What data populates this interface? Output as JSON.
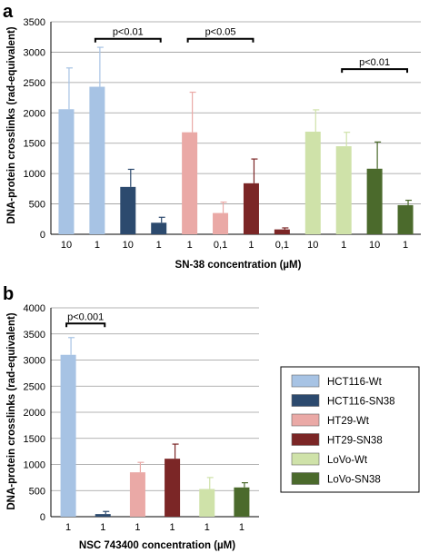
{
  "chart_data": [
    {
      "type": "bar",
      "panel_label": "a",
      "ylabel": "DNA-protein crosslinks (rad-equivalent)",
      "xlabel": "SN-38 concentration (µM)",
      "ylim": [
        0,
        3500
      ],
      "yticks": [
        "0",
        "500",
        "1000",
        "1500",
        "2000",
        "2500",
        "3000",
        "3500"
      ],
      "grid": true,
      "categories": [
        "10",
        "1",
        "10",
        "1",
        "1",
        "0,1",
        "1",
        "0,1",
        "10",
        "1",
        "10",
        "1"
      ],
      "values": [
        2060,
        2430,
        780,
        190,
        1680,
        350,
        840,
        80,
        1690,
        1450,
        1080,
        480
      ],
      "errors": [
        680,
        650,
        290,
        90,
        660,
        180,
        400,
        25,
        360,
        230,
        440,
        80
      ],
      "groups": [
        "HCT116-Wt",
        "HCT116-Wt",
        "HCT116-SN38",
        "HCT116-SN38",
        "HT29-Wt",
        "HT29-Wt",
        "HT29-SN38",
        "HT29-SN38",
        "LoVo-Wt",
        "LoVo-Wt",
        "LoVo-SN38",
        "LoVo-SN38"
      ],
      "annotations": [
        {
          "text": "p<0.01",
          "from_index": 1,
          "to_index": 3,
          "y": 3220
        },
        {
          "text": "p<0.05",
          "from_index": 4,
          "to_index": 6,
          "y": 3220
        },
        {
          "text": "p<0.01",
          "from_index": 9,
          "to_index": 11,
          "y": 2720
        }
      ]
    },
    {
      "type": "bar",
      "panel_label": "b",
      "ylabel": "DNA-protein crosslinks (rad-equivalent)",
      "xlabel": "NSC 743400 concentration (µM)",
      "ylim": [
        0,
        4000
      ],
      "yticks": [
        "0",
        "500",
        "1000",
        "1500",
        "2000",
        "2500",
        "3000",
        "3500",
        "4000"
      ],
      "grid": true,
      "categories": [
        "1",
        "1",
        "1",
        "1",
        "1",
        "1"
      ],
      "values": [
        3100,
        50,
        850,
        1110,
        530,
        560
      ],
      "errors": [
        330,
        50,
        190,
        280,
        220,
        90
      ],
      "groups": [
        "HCT116-Wt",
        "HCT116-SN38",
        "HT29-Wt",
        "HT29-SN38",
        "LoVo-Wt",
        "LoVo-SN38"
      ],
      "annotations": [
        {
          "text": "p<0.001",
          "from_index": 0,
          "to_index": 1,
          "y": 3700
        }
      ]
    }
  ],
  "legend": {
    "placement": "right of panel b",
    "items": [
      {
        "label": "HCT116-Wt",
        "color": "#a7c3e4"
      },
      {
        "label": "HCT116-SN38",
        "color": "#2c4a6e"
      },
      {
        "label": "HT29-Wt",
        "color": "#eaa9a6"
      },
      {
        "label": "HT29-SN38",
        "color": "#7b2626"
      },
      {
        "label": "LoVo-Wt",
        "color": "#cfe2a9"
      },
      {
        "label": "LoVo-SN38",
        "color": "#4b6a2c"
      }
    ]
  }
}
